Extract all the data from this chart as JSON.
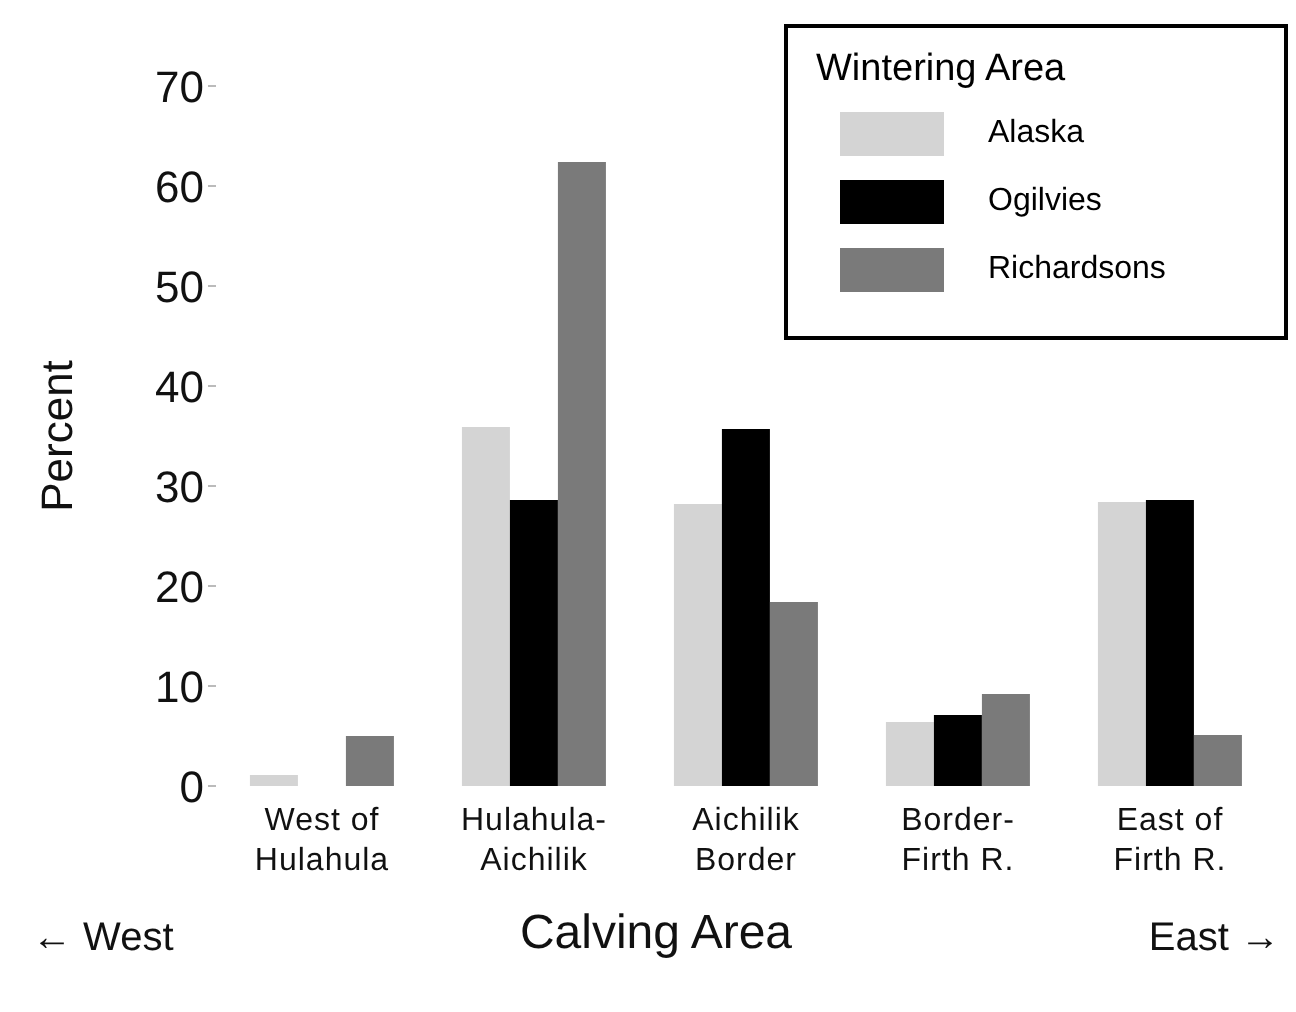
{
  "chart_data": {
    "type": "bar",
    "xlabel": "Calving Area",
    "ylabel": "Percent",
    "legend_title": "Wintering Area",
    "categories": [
      "West of Hulahula",
      "Hulahula-Aichilik",
      "Aichilik Border",
      "Border-Firth R.",
      "East of Firth R."
    ],
    "series": [
      {
        "name": "Alaska",
        "color": "#d4d4d4",
        "values": [
          1.1,
          35.9,
          28.2,
          6.4,
          28.4
        ]
      },
      {
        "name": "Ogilvies",
        "color": "#000000",
        "values": [
          0,
          28.6,
          35.7,
          7.1,
          28.6
        ]
      },
      {
        "name": "Richardsons",
        "color": "#7a7a7a",
        "values": [
          5.0,
          62.4,
          18.4,
          9.2,
          5.1
        ]
      }
    ],
    "ylim": [
      0,
      70
    ],
    "yticks": [
      0,
      10,
      20,
      30,
      40,
      50,
      60,
      70
    ],
    "grid": false,
    "legend": "top right",
    "annotations": [
      "← West",
      "East →"
    ]
  }
}
